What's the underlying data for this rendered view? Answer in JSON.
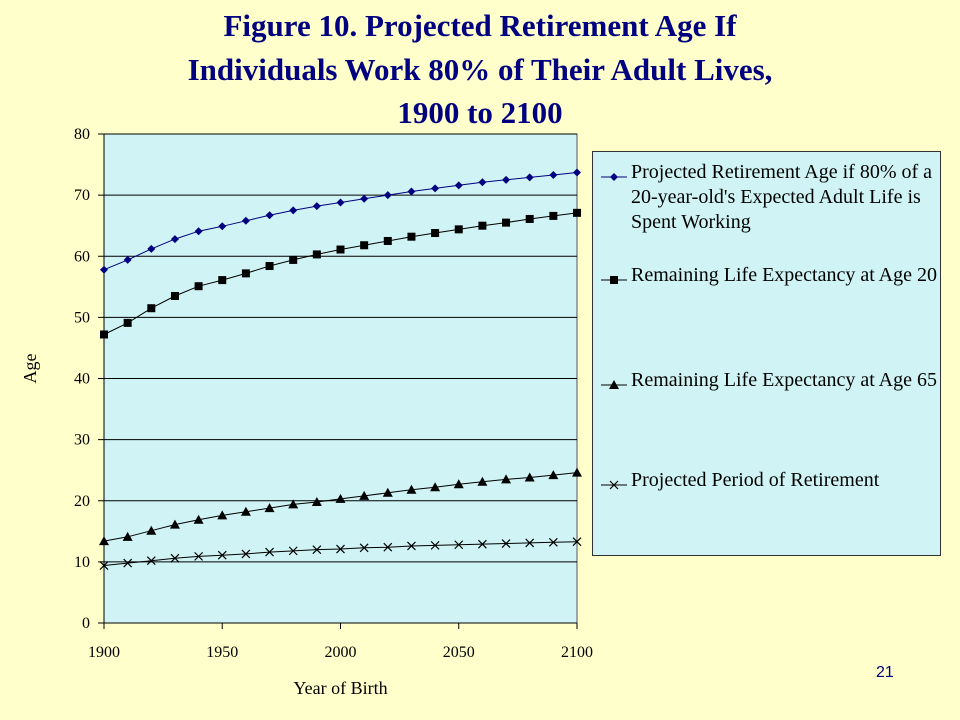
{
  "title": {
    "line1": "Figure 10.  Projected Retirement Age If",
    "line2": "Individuals Work 80% of Their Adult Lives,",
    "line3": "1900 to 2100"
  },
  "page_number": "21",
  "colors": {
    "background": "#ffffcc",
    "plot_area": "#d0f4f5",
    "title": "#000080",
    "series_retirement_age": "#000080",
    "series_other": "#000000"
  },
  "chart_data": {
    "type": "line",
    "title": "Figure 10.  Projected Retirement Age If Individuals Work 80% of Their Adult Lives, 1900 to 2100",
    "xlabel": "Year of Birth",
    "ylabel": "Age",
    "xlim": [
      1900,
      2100
    ],
    "ylim": [
      0,
      80
    ],
    "x_ticks": [
      "1900",
      "1950",
      "2000",
      "2050",
      "2100"
    ],
    "y_ticks": [
      "0",
      "10",
      "20",
      "30",
      "40",
      "50",
      "60",
      "70",
      "80"
    ],
    "grid": "horizontal",
    "legend_position": "right",
    "x": [
      1900,
      1910,
      1920,
      1930,
      1940,
      1950,
      1960,
      1970,
      1980,
      1990,
      2000,
      2010,
      2020,
      2030,
      2040,
      2050,
      2060,
      2070,
      2080,
      2090,
      2100
    ],
    "series": [
      {
        "name": "Projected Retirement Age if 80% of a 20-year-old's Expected Adult Life is Spent Working",
        "marker": "diamond",
        "values": [
          57.8,
          59.4,
          61.2,
          62.8,
          64.1,
          64.9,
          65.8,
          66.7,
          67.5,
          68.2,
          68.8,
          69.4,
          70.0,
          70.6,
          71.1,
          71.6,
          72.1,
          72.5,
          72.9,
          73.3,
          73.7
        ]
      },
      {
        "name": "Remaining Life Expectancy at Age 20",
        "marker": "square",
        "values": [
          47.2,
          49.1,
          51.5,
          53.5,
          55.1,
          56.1,
          57.2,
          58.4,
          59.4,
          60.3,
          61.1,
          61.8,
          62.5,
          63.2,
          63.8,
          64.4,
          65.0,
          65.5,
          66.1,
          66.6,
          67.1
        ]
      },
      {
        "name": "Remaining Life Expectancy at Age 65",
        "marker": "triangle",
        "values": [
          13.4,
          14.1,
          15.1,
          16.1,
          16.9,
          17.6,
          18.2,
          18.8,
          19.4,
          19.8,
          20.3,
          20.8,
          21.3,
          21.8,
          22.2,
          22.7,
          23.1,
          23.5,
          23.8,
          24.2,
          24.6
        ]
      },
      {
        "name": "Projected Period of Retirement",
        "marker": "x",
        "values": [
          9.4,
          9.8,
          10.2,
          10.6,
          10.9,
          11.1,
          11.3,
          11.6,
          11.8,
          12.0,
          12.1,
          12.3,
          12.4,
          12.6,
          12.7,
          12.8,
          12.9,
          13.0,
          13.1,
          13.2,
          13.3
        ]
      }
    ]
  }
}
